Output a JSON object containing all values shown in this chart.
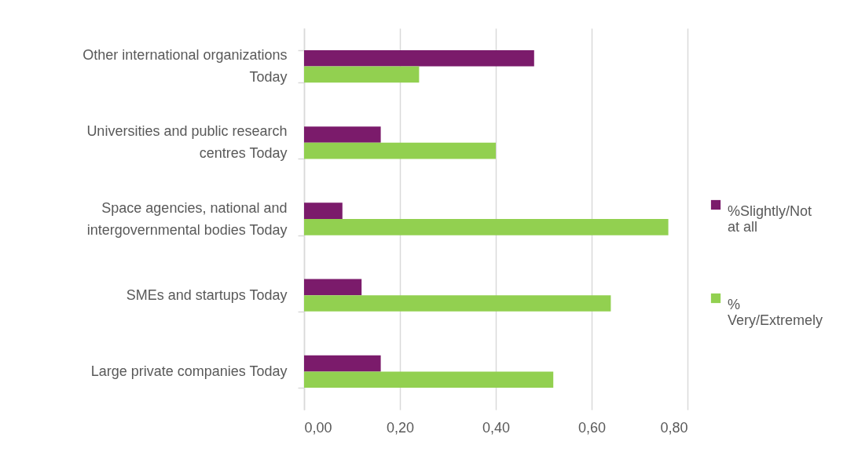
{
  "chart_data": {
    "type": "bar",
    "orientation": "horizontal",
    "categories": [
      "Other international organizations Today",
      "Universities and public research centres Today",
      "Space agencies, national and intergovernmental bodies Today",
      "SMEs and startups Today",
      "Large private companies Today"
    ],
    "series": [
      {
        "name": "%Slightly/Not at all",
        "color": "#7b1b6b",
        "values": [
          0.48,
          0.16,
          0.08,
          0.12,
          0.16
        ]
      },
      {
        "name": "% Very/Extremely",
        "color": "#92d050",
        "values": [
          0.24,
          0.4,
          0.76,
          0.64,
          0.52
        ]
      }
    ],
    "xlim": [
      0,
      0.8
    ],
    "xticks": [
      {
        "value": 0,
        "label": "0,00"
      },
      {
        "value": 0.2,
        "label": "0,20"
      },
      {
        "value": 0.4,
        "label": "0,40"
      },
      {
        "value": 0.6,
        "label": "0,60"
      },
      {
        "value": 0.8,
        "label": "0,80"
      }
    ],
    "grid": "x",
    "legend": "right"
  }
}
